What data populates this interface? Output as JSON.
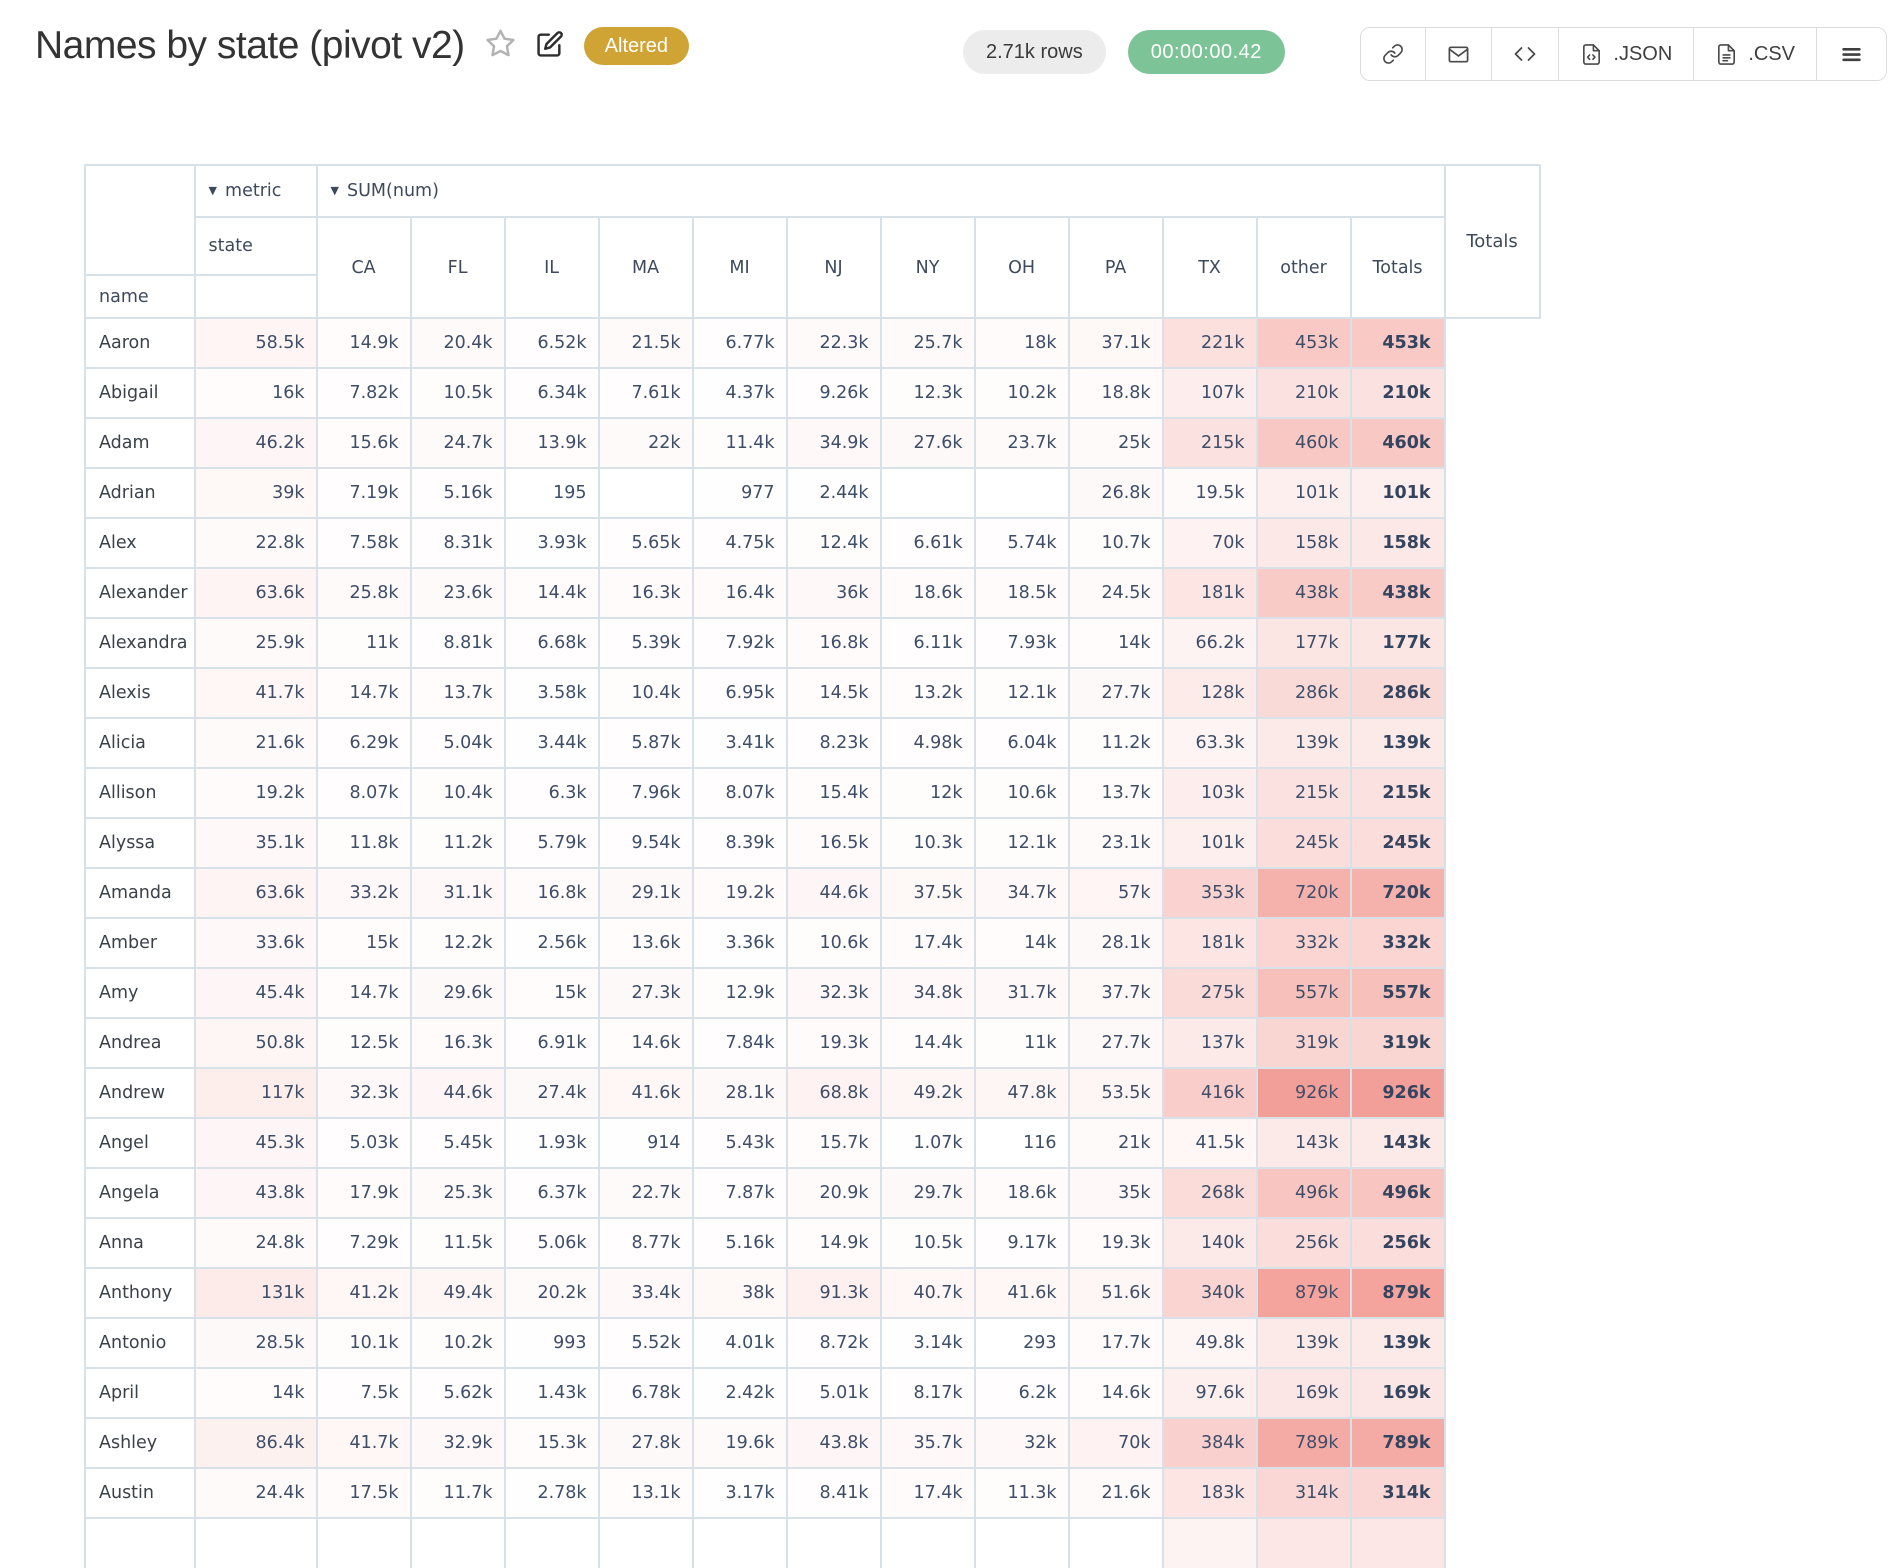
{
  "header": {
    "title": "Names by state (pivot v2)",
    "status_badge": "Altered",
    "rows_pill": "2.71k rows",
    "time_pill": "00:00:00.42",
    "toolbar": {
      "json_label": ".JSON",
      "csv_label": ".CSV"
    }
  },
  "icons": {
    "caret": "▼"
  },
  "pivot": {
    "metric_label": "metric",
    "metric_value": "SUM(num)",
    "state_label": "state",
    "name_label": "name",
    "totals_label": "Totals",
    "columns": [
      "CA",
      "FL",
      "IL",
      "MA",
      "MI",
      "NJ",
      "NY",
      "OH",
      "PA",
      "TX",
      "other",
      "Totals"
    ],
    "max_value": 926000,
    "heat_base_rgb": "237,108,98",
    "rows": [
      {
        "name": "Aaron",
        "values": [
          "58.5k",
          "14.9k",
          "20.4k",
          "6.52k",
          "21.5k",
          "6.77k",
          "22.3k",
          "25.7k",
          "18k",
          "37.1k",
          "221k",
          "453k"
        ],
        "total": "453k"
      },
      {
        "name": "Abigail",
        "values": [
          "16k",
          "7.82k",
          "10.5k",
          "6.34k",
          "7.61k",
          "4.37k",
          "9.26k",
          "12.3k",
          "10.2k",
          "18.8k",
          "107k",
          "210k"
        ],
        "total": "210k"
      },
      {
        "name": "Adam",
        "values": [
          "46.2k",
          "15.6k",
          "24.7k",
          "13.9k",
          "22k",
          "11.4k",
          "34.9k",
          "27.6k",
          "23.7k",
          "25k",
          "215k",
          "460k"
        ],
        "total": "460k"
      },
      {
        "name": "Adrian",
        "values": [
          "39k",
          "7.19k",
          "5.16k",
          "195",
          "",
          "977",
          "2.44k",
          "",
          "",
          "26.8k",
          "19.5k",
          "101k"
        ],
        "total": "101k"
      },
      {
        "name": "Alex",
        "values": [
          "22.8k",
          "7.58k",
          "8.31k",
          "3.93k",
          "5.65k",
          "4.75k",
          "12.4k",
          "6.61k",
          "5.74k",
          "10.7k",
          "70k",
          "158k"
        ],
        "total": "158k"
      },
      {
        "name": "Alexander",
        "values": [
          "63.6k",
          "25.8k",
          "23.6k",
          "14.4k",
          "16.3k",
          "16.4k",
          "36k",
          "18.6k",
          "18.5k",
          "24.5k",
          "181k",
          "438k"
        ],
        "total": "438k"
      },
      {
        "name": "Alexandra",
        "values": [
          "25.9k",
          "11k",
          "8.81k",
          "6.68k",
          "5.39k",
          "7.92k",
          "16.8k",
          "6.11k",
          "7.93k",
          "14k",
          "66.2k",
          "177k"
        ],
        "total": "177k"
      },
      {
        "name": "Alexis",
        "values": [
          "41.7k",
          "14.7k",
          "13.7k",
          "3.58k",
          "10.4k",
          "6.95k",
          "14.5k",
          "13.2k",
          "12.1k",
          "27.7k",
          "128k",
          "286k"
        ],
        "total": "286k"
      },
      {
        "name": "Alicia",
        "values": [
          "21.6k",
          "6.29k",
          "5.04k",
          "3.44k",
          "5.87k",
          "3.41k",
          "8.23k",
          "4.98k",
          "6.04k",
          "11.2k",
          "63.3k",
          "139k"
        ],
        "total": "139k"
      },
      {
        "name": "Allison",
        "values": [
          "19.2k",
          "8.07k",
          "10.4k",
          "6.3k",
          "7.96k",
          "8.07k",
          "15.4k",
          "12k",
          "10.6k",
          "13.7k",
          "103k",
          "215k"
        ],
        "total": "215k"
      },
      {
        "name": "Alyssa",
        "values": [
          "35.1k",
          "11.8k",
          "11.2k",
          "5.79k",
          "9.54k",
          "8.39k",
          "16.5k",
          "10.3k",
          "12.1k",
          "23.1k",
          "101k",
          "245k"
        ],
        "total": "245k"
      },
      {
        "name": "Amanda",
        "values": [
          "63.6k",
          "33.2k",
          "31.1k",
          "16.8k",
          "29.1k",
          "19.2k",
          "44.6k",
          "37.5k",
          "34.7k",
          "57k",
          "353k",
          "720k"
        ],
        "total": "720k"
      },
      {
        "name": "Amber",
        "values": [
          "33.6k",
          "15k",
          "12.2k",
          "2.56k",
          "13.6k",
          "3.36k",
          "10.6k",
          "17.4k",
          "14k",
          "28.1k",
          "181k",
          "332k"
        ],
        "total": "332k"
      },
      {
        "name": "Amy",
        "values": [
          "45.4k",
          "14.7k",
          "29.6k",
          "15k",
          "27.3k",
          "12.9k",
          "32.3k",
          "34.8k",
          "31.7k",
          "37.7k",
          "275k",
          "557k"
        ],
        "total": "557k"
      },
      {
        "name": "Andrea",
        "values": [
          "50.8k",
          "12.5k",
          "16.3k",
          "6.91k",
          "14.6k",
          "7.84k",
          "19.3k",
          "14.4k",
          "11k",
          "27.7k",
          "137k",
          "319k"
        ],
        "total": "319k"
      },
      {
        "name": "Andrew",
        "values": [
          "117k",
          "32.3k",
          "44.6k",
          "27.4k",
          "41.6k",
          "28.1k",
          "68.8k",
          "49.2k",
          "47.8k",
          "53.5k",
          "416k",
          "926k"
        ],
        "total": "926k"
      },
      {
        "name": "Angel",
        "values": [
          "45.3k",
          "5.03k",
          "5.45k",
          "1.93k",
          "914",
          "5.43k",
          "15.7k",
          "1.07k",
          "116",
          "21k",
          "41.5k",
          "143k"
        ],
        "total": "143k"
      },
      {
        "name": "Angela",
        "values": [
          "43.8k",
          "17.9k",
          "25.3k",
          "6.37k",
          "22.7k",
          "7.87k",
          "20.9k",
          "29.7k",
          "18.6k",
          "35k",
          "268k",
          "496k"
        ],
        "total": "496k"
      },
      {
        "name": "Anna",
        "values": [
          "24.8k",
          "7.29k",
          "11.5k",
          "5.06k",
          "8.77k",
          "5.16k",
          "14.9k",
          "10.5k",
          "9.17k",
          "19.3k",
          "140k",
          "256k"
        ],
        "total": "256k"
      },
      {
        "name": "Anthony",
        "values": [
          "131k",
          "41.2k",
          "49.4k",
          "20.2k",
          "33.4k",
          "38k",
          "91.3k",
          "40.7k",
          "41.6k",
          "51.6k",
          "340k",
          "879k"
        ],
        "total": "879k"
      },
      {
        "name": "Antonio",
        "values": [
          "28.5k",
          "10.1k",
          "10.2k",
          "993",
          "5.52k",
          "4.01k",
          "8.72k",
          "3.14k",
          "293",
          "17.7k",
          "49.8k",
          "139k"
        ],
        "total": "139k"
      },
      {
        "name": "April",
        "values": [
          "14k",
          "7.5k",
          "5.62k",
          "1.43k",
          "6.78k",
          "2.42k",
          "5.01k",
          "8.17k",
          "6.2k",
          "14.6k",
          "97.6k",
          "169k"
        ],
        "total": "169k"
      },
      {
        "name": "Ashley",
        "values": [
          "86.4k",
          "41.7k",
          "32.9k",
          "15.3k",
          "27.8k",
          "19.6k",
          "43.8k",
          "35.7k",
          "32k",
          "70k",
          "384k",
          "789k"
        ],
        "total": "789k"
      },
      {
        "name": "Austin",
        "values": [
          "24.4k",
          "17.5k",
          "11.7k",
          "2.78k",
          "13.1k",
          "3.17k",
          "8.41k",
          "17.4k",
          "11.3k",
          "21.6k",
          "183k",
          "314k"
        ],
        "total": "314k"
      }
    ]
  }
}
